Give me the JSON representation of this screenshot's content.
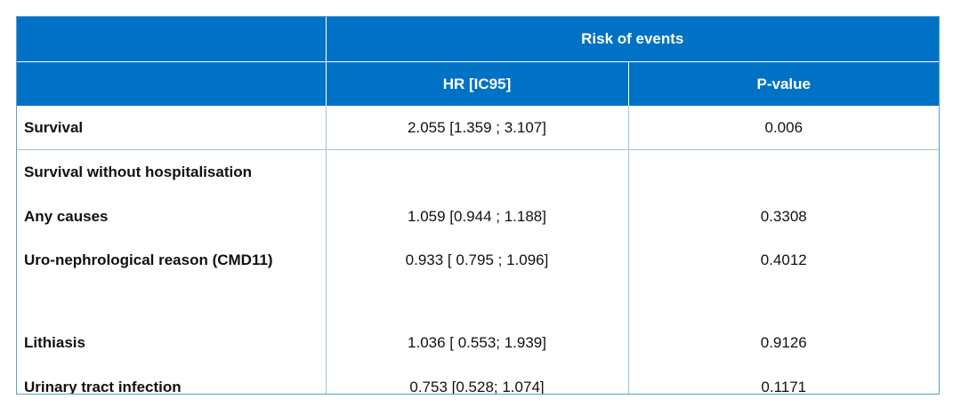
{
  "header": {
    "group_label": "Risk of events",
    "col_hr": "HR [IC95]",
    "col_p": "P-value"
  },
  "rows": [
    {
      "label": "Survival",
      "hr": "2.055 [1.359 ; 3.107]",
      "p": "0.006"
    },
    {
      "label": "Survival without hospitalisation",
      "hr": "",
      "p": ""
    },
    {
      "label": "Any causes",
      "hr": "1.059 [0.944 ; 1.188]",
      "p": "0.3308"
    },
    {
      "label": "Uro-nephrological reason (CMD11)",
      "hr": "0.933 [ 0.795 ; 1.096]",
      "p": "0.4012"
    },
    {
      "label": "Lithiasis",
      "hr": "1.036 [ 0.553; 1.939]",
      "p": "0.9126"
    },
    {
      "label": "Urinary tract infection",
      "hr": "0.753 [0.528; 1.074]",
      "p": "0.1171"
    }
  ],
  "colors": {
    "header_bg": "#0072c6",
    "header_text": "#ffffff",
    "border": "#5aa0c8"
  }
}
